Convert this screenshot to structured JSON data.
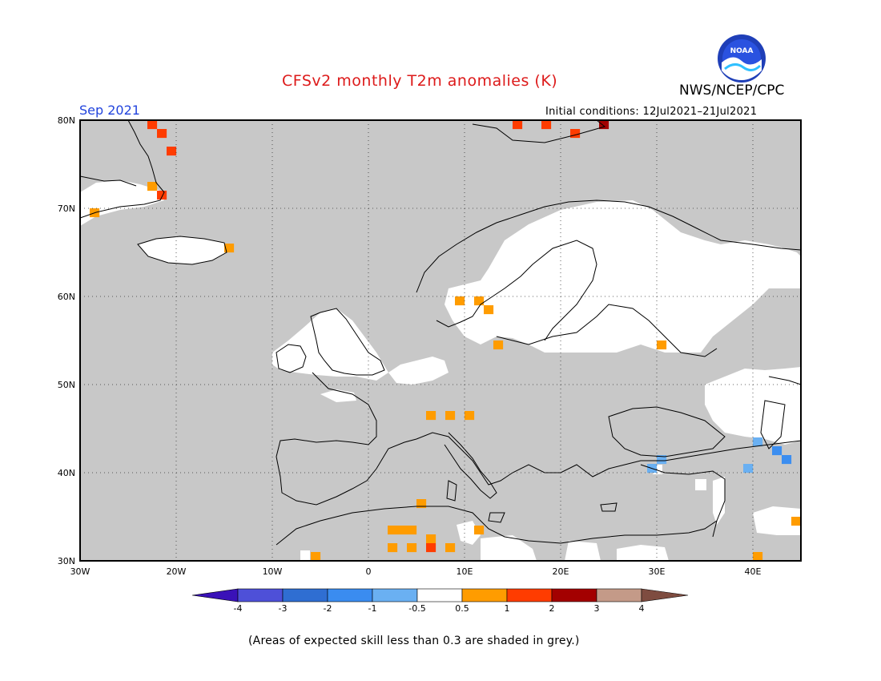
{
  "header": {
    "title": "CFSv2 monthly T2m anomalies (K)",
    "agency": "NWS/NCEP/CPC",
    "logo_text": "NOAA",
    "month": "Sep 2021",
    "initial_conditions": "Initial conditions: 12Jul2021–21Jul2021"
  },
  "map": {
    "lon_range": [
      -30,
      45
    ],
    "lat_range": [
      30,
      80
    ],
    "lon_labels": [
      "30W",
      "20W",
      "10W",
      "0",
      "10E",
      "20E",
      "30E",
      "40E"
    ],
    "lat_labels": [
      "30N",
      "40N",
      "50N",
      "60N",
      "70N",
      "80N"
    ],
    "colors": {
      "grey": "#c8c8c8",
      "white": "#ffffff",
      "orange": "#ff9c00",
      "red": "#ff3c00",
      "darkred": "#a30000",
      "lightblue": "#6ab0f2",
      "blue": "#3c8ef0"
    },
    "anomaly_cells": [
      {
        "lon": -23,
        "lat": 79,
        "cls": "red"
      },
      {
        "lon": -22,
        "lat": 78,
        "cls": "red"
      },
      {
        "lon": -21,
        "lat": 76,
        "cls": "red"
      },
      {
        "lon": -23,
        "lat": 72,
        "cls": "orange"
      },
      {
        "lon": -22,
        "lat": 71,
        "cls": "red"
      },
      {
        "lon": -29,
        "lat": 69,
        "cls": "orange"
      },
      {
        "lon": -15,
        "lat": 65,
        "cls": "orange"
      },
      {
        "lon": 15,
        "lat": 79,
        "cls": "red"
      },
      {
        "lon": 18,
        "lat": 79,
        "cls": "red"
      },
      {
        "lon": 21,
        "lat": 78,
        "cls": "red"
      },
      {
        "lon": 24,
        "lat": 79,
        "cls": "darkred"
      },
      {
        "lon": 9,
        "lat": 59,
        "cls": "orange"
      },
      {
        "lon": 11,
        "lat": 59,
        "cls": "orange"
      },
      {
        "lon": 12,
        "lat": 58,
        "cls": "orange"
      },
      {
        "lon": 13,
        "lat": 54,
        "cls": "orange"
      },
      {
        "lon": 30,
        "lat": 54,
        "cls": "orange"
      },
      {
        "lon": 6,
        "lat": 46,
        "cls": "orange"
      },
      {
        "lon": 8,
        "lat": 46,
        "cls": "orange"
      },
      {
        "lon": 10,
        "lat": 46,
        "cls": "orange"
      },
      {
        "lon": 5,
        "lat": 36,
        "cls": "orange"
      },
      {
        "lon": 2,
        "lat": 33,
        "cls": "orange"
      },
      {
        "lon": 3,
        "lat": 33,
        "cls": "orange"
      },
      {
        "lon": 4,
        "lat": 33,
        "cls": "orange"
      },
      {
        "lon": 6,
        "lat": 32,
        "cls": "orange"
      },
      {
        "lon": 2,
        "lat": 31,
        "cls": "orange"
      },
      {
        "lon": 4,
        "lat": 31,
        "cls": "orange"
      },
      {
        "lon": 6,
        "lat": 31,
        "cls": "red"
      },
      {
        "lon": 8,
        "lat": 31,
        "cls": "orange"
      },
      {
        "lon": 11,
        "lat": 33,
        "cls": "orange"
      },
      {
        "lon": -6,
        "lat": 30,
        "cls": "orange"
      },
      {
        "lon": 40,
        "lat": 30,
        "cls": "orange"
      },
      {
        "lon": 44,
        "lat": 34,
        "cls": "orange"
      },
      {
        "lon": 40,
        "lat": 43,
        "cls": "lightblue"
      },
      {
        "lon": 42,
        "lat": 42,
        "cls": "blue"
      },
      {
        "lon": 43,
        "lat": 41,
        "cls": "blue"
      },
      {
        "lon": 30,
        "lat": 41,
        "cls": "lightblue"
      },
      {
        "lon": 29,
        "lat": 40,
        "cls": "lightblue"
      },
      {
        "lon": 39,
        "lat": 40,
        "cls": "lightblue"
      }
    ]
  },
  "colorbar": {
    "labels": [
      "-4",
      "-3",
      "-2",
      "-1",
      "-0.5",
      "0.5",
      "1",
      "2",
      "3",
      "4"
    ],
    "colors": [
      "#3a12b8",
      "#4e50d8",
      "#2f6ed2",
      "#3a8cf0",
      "#6ab0f2",
      "#ffffff",
      "#ff9c00",
      "#ff3c00",
      "#a30000",
      "#c49a88",
      "#7e4c40"
    ]
  },
  "footnote": "(Areas of expected skill less than 0.3 are shaded in grey.)"
}
